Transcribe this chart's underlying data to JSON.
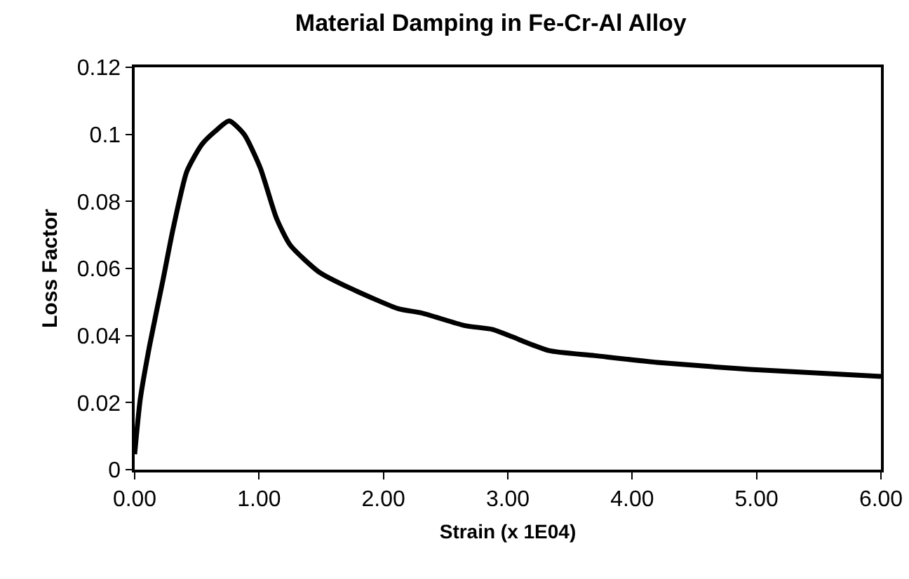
{
  "chart_data": {
    "type": "line",
    "title": "Material Damping in Fe-Cr-Al Alloy",
    "xlabel": "Strain (x 1E04)",
    "ylabel": "Loss Factor",
    "x": [
      0,
      0.045,
      0.12,
      0.23,
      0.31,
      0.42,
      0.54,
      0.65,
      0.76,
      0.88,
      1.01,
      1.14,
      1.25,
      1.48,
      1.74,
      2.12,
      2.31,
      2.65,
      2.88,
      3.03,
      3.33,
      3.7,
      4.2,
      4.95,
      6.0
    ],
    "series": [
      {
        "color": "#000000",
        "values": [
          0.0046,
          0.021,
          0.037,
          0.057,
          0.072,
          0.089,
          0.097,
          0.101,
          0.104,
          0.1,
          0.09,
          0.075,
          0.067,
          0.059,
          0.054,
          0.048,
          0.0467,
          0.043,
          0.0418,
          0.0397,
          0.0355,
          0.034,
          0.032,
          0.0299,
          0.0278
        ]
      }
    ],
    "xlim": [
      0,
      6
    ],
    "xticks": [
      {
        "value": 0,
        "label": "0.00"
      },
      {
        "value": 1,
        "label": "1.00"
      },
      {
        "value": 2,
        "label": "2.00"
      },
      {
        "value": 3,
        "label": "3.00"
      },
      {
        "value": 4,
        "label": "4.00"
      },
      {
        "value": 5,
        "label": "5.00"
      },
      {
        "value": 6,
        "label": "6.00"
      }
    ],
    "ylim": [
      0,
      0.12
    ],
    "yticks": [
      0,
      0.02,
      0.04,
      0.06,
      0.08,
      0.1,
      0.12
    ],
    "marker": "none",
    "line_style": "solid"
  }
}
